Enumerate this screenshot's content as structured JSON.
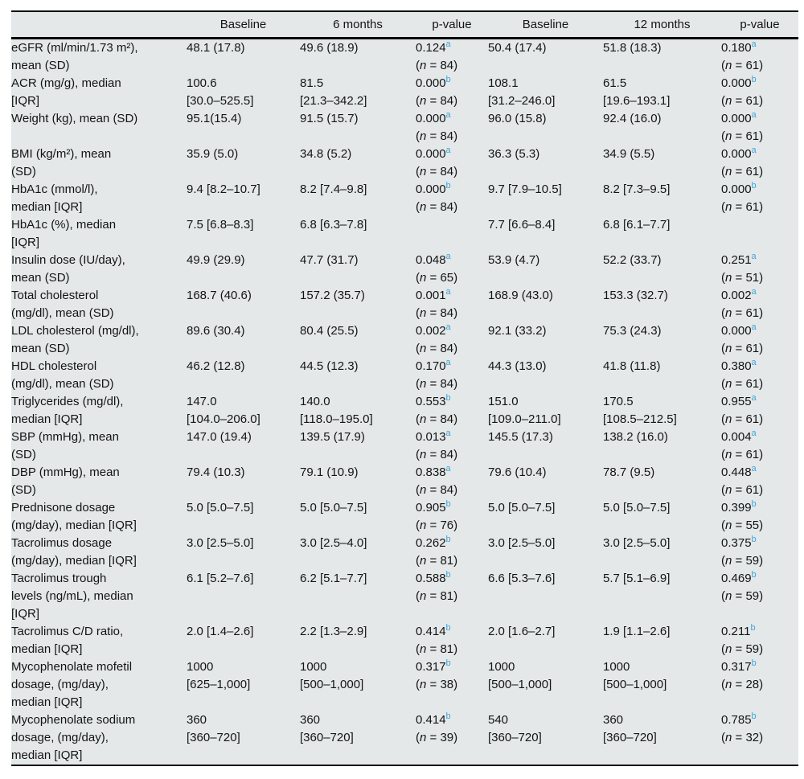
{
  "colors": {
    "table_background": "#e4e8e9",
    "rule_black": "#0a0a0a",
    "text": "#141414",
    "superscript_blue": "#3fa5d9"
  },
  "table": {
    "columns": [
      "",
      "Baseline",
      "6 months",
      "p-value",
      "Baseline",
      "12 months",
      "p-value"
    ],
    "rows": [
      {
        "label": [
          "eGFR (ml/min/1.73 m²),",
          "mean (SD)"
        ],
        "cells": [
          {
            "v": [
              "48.1 (17.8)"
            ]
          },
          {
            "v": [
              "49.6 (18.9)"
            ]
          },
          {
            "p": "0.124",
            "sup": "a",
            "n": "84"
          },
          {
            "v": [
              "50.4 (17.4)"
            ]
          },
          {
            "v": [
              "51.8 (18.3)"
            ]
          },
          {
            "p": "0.180",
            "sup": "a",
            "n": "61"
          }
        ]
      },
      {
        "label": [
          "ACR (mg/g), median",
          "[IQR]"
        ],
        "cells": [
          {
            "v": [
              "100.6",
              "[30.0–525.5]"
            ]
          },
          {
            "v": [
              "81.5",
              "[21.3–342.2]"
            ]
          },
          {
            "p": "0.000",
            "sup": "b",
            "n": "84"
          },
          {
            "v": [
              "108.1",
              "[31.2–246.0]"
            ]
          },
          {
            "v": [
              "61.5",
              "[19.6–193.1]"
            ]
          },
          {
            "p": "0.000",
            "sup": "b",
            "n": "61"
          }
        ]
      },
      {
        "label": [
          "Weight (kg), mean (SD)"
        ],
        "cells": [
          {
            "v": [
              "95.1(15.4)"
            ]
          },
          {
            "v": [
              "91.5 (15.7)"
            ]
          },
          {
            "p": "0.000",
            "sup": "a",
            "n": "84"
          },
          {
            "v": [
              "96.0 (15.8)"
            ]
          },
          {
            "v": [
              "92.4 (16.0)"
            ]
          },
          {
            "p": "0.000",
            "sup": "a",
            "n": "61"
          }
        ]
      },
      {
        "label": [
          "BMI (kg/m²), mean",
          "(SD)"
        ],
        "cells": [
          {
            "v": [
              "35.9 (5.0)"
            ]
          },
          {
            "v": [
              "34.8 (5.2)"
            ]
          },
          {
            "p": "0.000",
            "sup": "a",
            "n": "84"
          },
          {
            "v": [
              "36.3 (5.3)"
            ]
          },
          {
            "v": [
              "34.9 (5.5)"
            ]
          },
          {
            "p": "0.000",
            "sup": "a",
            "n": "61"
          }
        ]
      },
      {
        "label": [
          "HbA1c (mmol/l),",
          "median [IQR]"
        ],
        "cells": [
          {
            "v": [
              "9.4 [8.2–10.7]"
            ]
          },
          {
            "v": [
              "8.2 [7.4–9.8]"
            ]
          },
          {
            "p": "0.000",
            "sup": "b",
            "n": "84"
          },
          {
            "v": [
              "9.7 [7.9–10.5]"
            ]
          },
          {
            "v": [
              "8.2 [7.3–9.5]"
            ]
          },
          {
            "p": "0.000",
            "sup": "b",
            "n": "61"
          }
        ]
      },
      {
        "label": [
          "HbA1c (%), median",
          "[IQR]"
        ],
        "cells": [
          {
            "v": [
              "7.5 [6.8–8.3]"
            ]
          },
          {
            "v": [
              "6.8 [6.3–7.8]"
            ]
          },
          null,
          {
            "v": [
              "7.7 [6.6–8.4]"
            ]
          },
          {
            "v": [
              "6.8 [6.1–7.7]"
            ]
          },
          null
        ]
      },
      {
        "label": [
          "Insulin dose (IU/day),",
          "mean (SD)"
        ],
        "cells": [
          {
            "v": [
              "49.9 (29.9)"
            ]
          },
          {
            "v": [
              "47.7 (31.7)"
            ]
          },
          {
            "p": "0.048",
            "sup": "a",
            "n": "65"
          },
          {
            "v": [
              "53.9 (4.7)"
            ]
          },
          {
            "v": [
              "52.2 (33.7)"
            ]
          },
          {
            "p": "0.251",
            "sup": "a",
            "n": "51"
          }
        ]
      },
      {
        "label": [
          "Total cholesterol",
          "(mg/dl), mean (SD)"
        ],
        "cells": [
          {
            "v": [
              "168.7 (40.6)"
            ]
          },
          {
            "v": [
              "157.2 (35.7)"
            ]
          },
          {
            "p": "0.001",
            "sup": "a",
            "n": "84"
          },
          {
            "v": [
              "168.9 (43.0)"
            ]
          },
          {
            "v": [
              "153.3 (32.7)"
            ]
          },
          {
            "p": "0.002",
            "sup": "a",
            "n": "61"
          }
        ]
      },
      {
        "label": [
          "LDL cholesterol (mg/dl),",
          "mean (SD)"
        ],
        "cells": [
          {
            "v": [
              "89.6 (30.4)"
            ]
          },
          {
            "v": [
              "80.4 (25.5)"
            ]
          },
          {
            "p": "0.002",
            "sup": "a",
            "n": "84"
          },
          {
            "v": [
              "92.1 (33.2)"
            ]
          },
          {
            "v": [
              "75.3 (24.3)"
            ]
          },
          {
            "p": "0.000",
            "sup": "a",
            "n": "61"
          }
        ]
      },
      {
        "label": [
          "HDL cholesterol",
          "(mg/dl), mean (SD)"
        ],
        "cells": [
          {
            "v": [
              "46.2 (12.8)"
            ]
          },
          {
            "v": [
              "44.5 (12.3)"
            ]
          },
          {
            "p": "0.170",
            "sup": "a",
            "n": "84"
          },
          {
            "v": [
              "44.3 (13.0)"
            ]
          },
          {
            "v": [
              "41.8 (11.8)"
            ]
          },
          {
            "p": "0.380",
            "sup": "a",
            "n": "61"
          }
        ]
      },
      {
        "label": [
          "Triglycerides (mg/dl),",
          "median [IQR]"
        ],
        "cells": [
          {
            "v": [
              "147.0",
              "[104.0–206.0]"
            ]
          },
          {
            "v": [
              "140.0",
              "[118.0–195.0]"
            ]
          },
          {
            "p": "0.553",
            "sup": "b",
            "n": "84"
          },
          {
            "v": [
              "151.0",
              "[109.0–211.0]"
            ]
          },
          {
            "v": [
              "170.5",
              "[108.5–212.5]"
            ]
          },
          {
            "p": "0.955",
            "sup": "a",
            "n": "61"
          }
        ]
      },
      {
        "label": [
          "SBP (mmHg), mean",
          "(SD)"
        ],
        "cells": [
          {
            "v": [
              "147.0 (19.4)"
            ]
          },
          {
            "v": [
              "139.5 (17.9)"
            ]
          },
          {
            "p": "0.013",
            "sup": "a",
            "n": "84"
          },
          {
            "v": [
              "145.5 (17.3)"
            ]
          },
          {
            "v": [
              "138.2 (16.0)"
            ]
          },
          {
            "p": "0.004",
            "sup": "a",
            "n": "61"
          }
        ]
      },
      {
        "label": [
          "DBP (mmHg), mean",
          "(SD)"
        ],
        "cells": [
          {
            "v": [
              "79.4 (10.3)"
            ]
          },
          {
            "v": [
              "79.1 (10.9)"
            ]
          },
          {
            "p": "0.838",
            "sup": "a",
            "n": "84"
          },
          {
            "v": [
              "79.6 (10.4)"
            ]
          },
          {
            "v": [
              "78.7 (9.5)"
            ]
          },
          {
            "p": "0.448",
            "sup": "a",
            "n": "61"
          }
        ]
      },
      {
        "label": [
          "Prednisone dosage",
          "(mg/day), median [IQR]"
        ],
        "cells": [
          {
            "v": [
              "5.0 [5.0–7.5]"
            ]
          },
          {
            "v": [
              "5.0 [5.0–7.5]"
            ]
          },
          {
            "p": "0.905",
            "sup": "b",
            "n": "76"
          },
          {
            "v": [
              "5.0 [5.0–7.5]"
            ]
          },
          {
            "v": [
              "5.0 [5.0–7.5]"
            ]
          },
          {
            "p": "0.399",
            "sup": "b",
            "n": "55"
          }
        ]
      },
      {
        "label": [
          "Tacrolimus dosage",
          "(mg/day), median [IQR]"
        ],
        "cells": [
          {
            "v": [
              "3.0 [2.5–5.0]"
            ]
          },
          {
            "v": [
              "3.0 [2.5–4.0]"
            ]
          },
          {
            "p": "0.262",
            "sup": "b",
            "n": "81"
          },
          {
            "v": [
              "3.0 [2.5–5.0]"
            ]
          },
          {
            "v": [
              "3.0 [2.5–5.0]"
            ]
          },
          {
            "p": "0.375",
            "sup": "b",
            "n": "59"
          }
        ]
      },
      {
        "label": [
          "Tacrolimus trough",
          "levels (ng/mL), median",
          "[IQR]"
        ],
        "cells": [
          {
            "v": [
              "6.1 [5.2–7.6]"
            ]
          },
          {
            "v": [
              "6.2 [5.1–7.7]"
            ]
          },
          {
            "p": "0.588",
            "sup": "b",
            "n": "81"
          },
          {
            "v": [
              "6.6 [5.3–7.6]"
            ]
          },
          {
            "v": [
              "5.7 [5.1–6.9]"
            ]
          },
          {
            "p": "0.469",
            "sup": "b",
            "n": "59"
          }
        ]
      },
      {
        "label": [
          "Tacrolimus C/D ratio,",
          "median [IQR]"
        ],
        "cells": [
          {
            "v": [
              "2.0 [1.4–2.6]"
            ]
          },
          {
            "v": [
              "2.2 [1.3–2.9]"
            ]
          },
          {
            "p": "0.414",
            "sup": "b",
            "n": "81"
          },
          {
            "v": [
              "2.0 [1.6–2.7]"
            ]
          },
          {
            "v": [
              "1.9 [1.1–2.6]"
            ]
          },
          {
            "p": "0.211",
            "sup": "b",
            "n": "59"
          }
        ]
      },
      {
        "label": [
          "Mycophenolate mofetil",
          "dosage, (mg/day),",
          "median [IQR]"
        ],
        "cells": [
          {
            "v": [
              "1000",
              "[625–1,000]"
            ]
          },
          {
            "v": [
              "1000",
              "[500–1,000]"
            ]
          },
          {
            "p": "0.317",
            "sup": "b",
            "n": "38"
          },
          {
            "v": [
              "1000",
              "[500–1,000]"
            ]
          },
          {
            "v": [
              "1000",
              "[500–1,000]"
            ]
          },
          {
            "p": "0.317",
            "sup": "b",
            "n": "28"
          }
        ]
      },
      {
        "label": [
          "Mycophenolate sodium",
          "dosage, (mg/day),",
          "median [IQR]"
        ],
        "cells": [
          {
            "v": [
              "360",
              "[360–720]"
            ]
          },
          {
            "v": [
              "360",
              "[360–720]"
            ]
          },
          {
            "p": "0.414",
            "sup": "b",
            "n": "39"
          },
          {
            "v": [
              "540",
              "[360–720]"
            ]
          },
          {
            "v": [
              "360",
              "[360–720]"
            ]
          },
          {
            "p": "0.785",
            "sup": "b",
            "n": "32"
          }
        ]
      }
    ]
  }
}
